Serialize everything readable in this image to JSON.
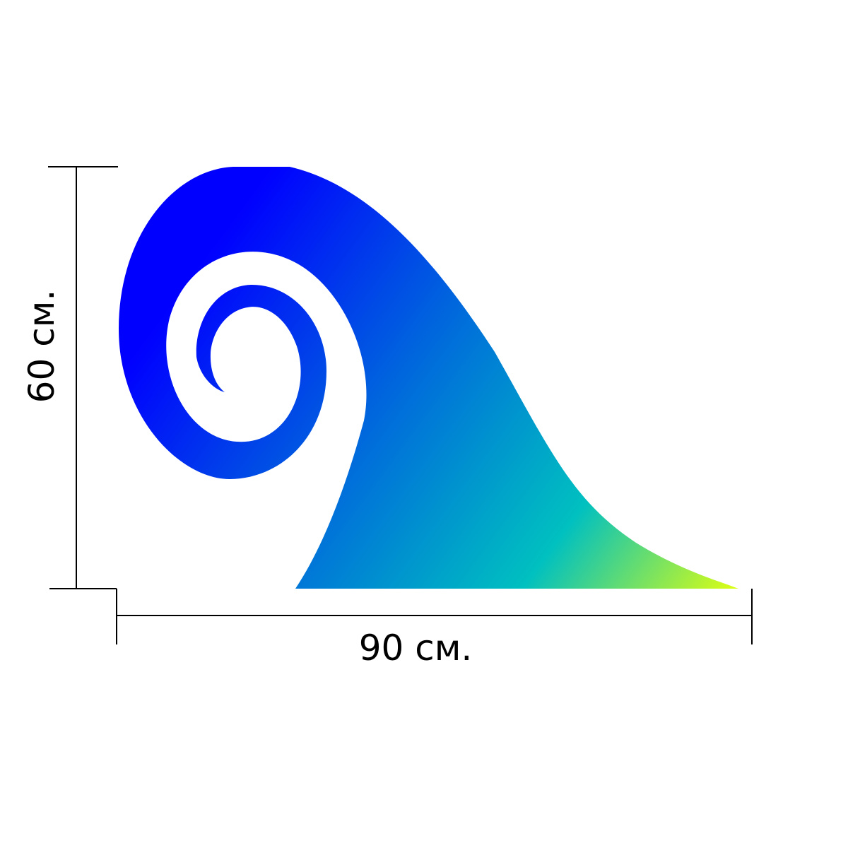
{
  "dimensions": {
    "width_label": "90 см.",
    "height_label": "60 см."
  },
  "colors": {
    "gradient_start": "#0000ff",
    "gradient_mid_blue": "#0066dd",
    "gradient_mid_teal": "#00c0c0",
    "gradient_end": "#e0ff10",
    "lines": "#000000"
  }
}
